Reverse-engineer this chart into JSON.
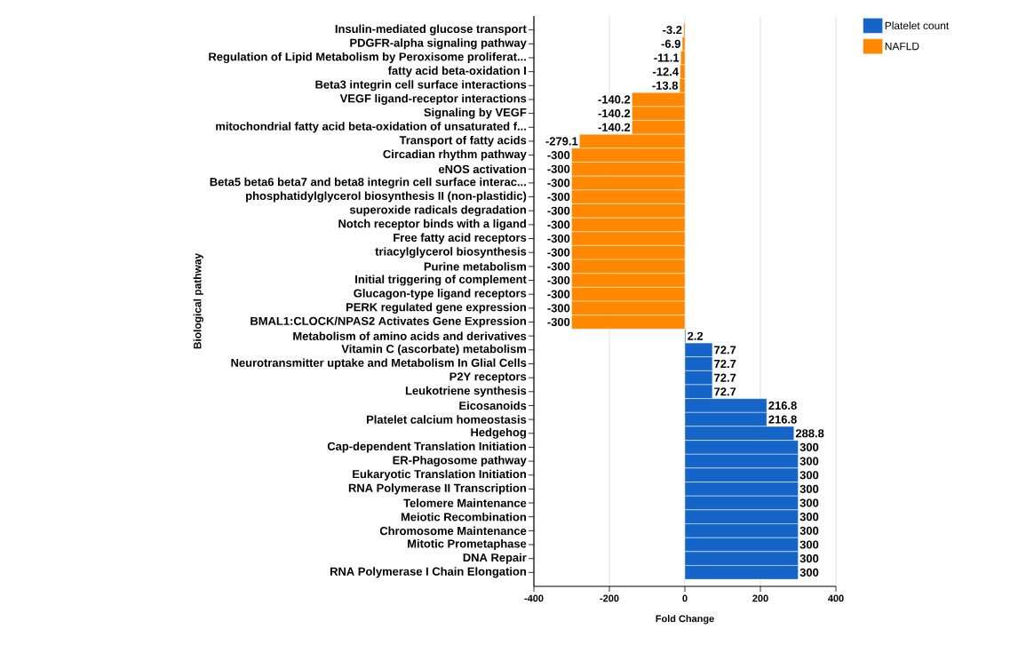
{
  "chart_data": {
    "type": "bar",
    "orientation": "horizontal",
    "xlabel": "Fold Change",
    "ylabel": "Biological pathway",
    "categories": [
      "Insulin-mediated glucose transport",
      "PDGFR-alpha signaling pathway",
      "Regulation of Lipid Metabolism by Peroxisome proliferat...",
      "fatty acid beta-oxidation I",
      "Beta3 integrin cell surface interactions",
      "VEGF ligand-receptor interactions",
      "Signaling by VEGF",
      "mitochondrial fatty acid beta-oxidation of unsaturated f...",
      "Transport of fatty acids",
      "Circadian rhythm pathway",
      "eNOS activation",
      "Beta5 beta6 beta7 and beta8 integrin cell surface interac...",
      "phosphatidylglycerol biosynthesis II (non-plastidic)",
      "superoxide radicals degradation",
      "Notch receptor binds with a ligand",
      "Free fatty acid receptors",
      "triacylglycerol biosynthesis",
      "Purine metabolism",
      "Initial triggering of complement",
      "Glucagon-type ligand receptors",
      "PERK regulated gene expression",
      "BMAL1:CLOCK/NPAS2 Activates Gene Expression",
      "Metabolism of amino acids and derivatives",
      "Vitamin C (ascorbate) metabolism",
      "Neurotransmitter uptake and Metabolism In Glial Cells",
      "P2Y receptors",
      "Leukotriene synthesis",
      "Eicosanoids",
      "Platelet calcium homeostasis",
      "Hedgehog",
      "Cap-dependent Translation Initiation",
      "ER-Phagosome pathway",
      "Eukaryotic Translation Initiation",
      "RNA Polymerase II Transcription",
      "Telomere Maintenance",
      "Meiotic Recombination",
      "Chromosome Maintenance",
      "Mitotic Prometaphase",
      "DNA Repair",
      "RNA Polymerase I Chain Elongation"
    ],
    "series": [
      {
        "name": "Platelet count",
        "color": "#1565c8",
        "values": [
          null,
          null,
          null,
          null,
          null,
          null,
          null,
          null,
          null,
          null,
          null,
          null,
          null,
          null,
          null,
          null,
          null,
          null,
          null,
          null,
          null,
          null,
          2.2,
          72.7,
          72.7,
          72.7,
          72.7,
          216.8,
          216.8,
          288.8,
          300,
          300,
          300,
          300,
          300,
          300,
          300,
          300,
          300,
          300
        ]
      },
      {
        "name": "NAFLD",
        "color": "#ff8800",
        "values": [
          -3.2,
          -6.9,
          -11.1,
          -12.4,
          -13.8,
          -140.2,
          -140.2,
          -140.2,
          -279.1,
          -300,
          -300,
          -300,
          -300,
          -300,
          -300,
          -300,
          -300,
          -300,
          -300,
          -300,
          -300,
          -300,
          null,
          null,
          null,
          null,
          null,
          null,
          null,
          null,
          null,
          null,
          null,
          null,
          null,
          null,
          null,
          null,
          null,
          null
        ]
      }
    ],
    "data_labels": true,
    "xlim": [
      -400,
      400
    ],
    "xticks": [
      -400,
      -200,
      0,
      200,
      400
    ],
    "grid": "x",
    "legend": "top right"
  }
}
